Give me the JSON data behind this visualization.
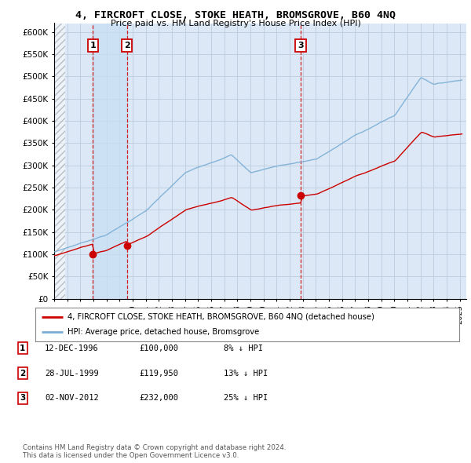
{
  "title": "4, FIRCROFT CLOSE, STOKE HEATH, BROMSGROVE, B60 4NQ",
  "subtitle": "Price paid vs. HM Land Registry's House Price Index (HPI)",
  "ylim": [
    0,
    600000
  ],
  "yticks": [
    0,
    50000,
    100000,
    150000,
    200000,
    250000,
    300000,
    350000,
    400000,
    450000,
    500000,
    550000,
    600000
  ],
  "xlim_start": 1994.0,
  "xlim_end": 2025.5,
  "sale_dates": [
    1996.96,
    1999.57,
    2012.84
  ],
  "sale_prices": [
    100000,
    119950,
    232000
  ],
  "sale_labels": [
    "1",
    "2",
    "3"
  ],
  "vline_dates": [
    1996.96,
    1999.57,
    2012.84
  ],
  "hpi_color": "#7aaed6",
  "sale_color": "#cc0000",
  "vline_color": "#cc0000",
  "background_color": "#ffffff",
  "grid_color": "#bbccdd",
  "plot_bg_color": "#dce8f5",
  "highlight_color": "#ddeeff",
  "legend_label_sale": "4, FIRCROFT CLOSE, STOKE HEATH, BROMSGROVE, B60 4NQ (detached house)",
  "legend_label_hpi": "HPI: Average price, detached house, Bromsgrove",
  "table_entries": [
    {
      "label": "1",
      "date": "12-DEC-1996",
      "price": "£100,000",
      "hpi": "8% ↓ HPI"
    },
    {
      "label": "2",
      "date": "28-JUL-1999",
      "price": "£119,950",
      "hpi": "13% ↓ HPI"
    },
    {
      "label": "3",
      "date": "02-NOV-2012",
      "price": "£232,000",
      "hpi": "25% ↓ HPI"
    }
  ],
  "footer": "Contains HM Land Registry data © Crown copyright and database right 2024.\nThis data is licensed under the Open Government Licence v3.0."
}
